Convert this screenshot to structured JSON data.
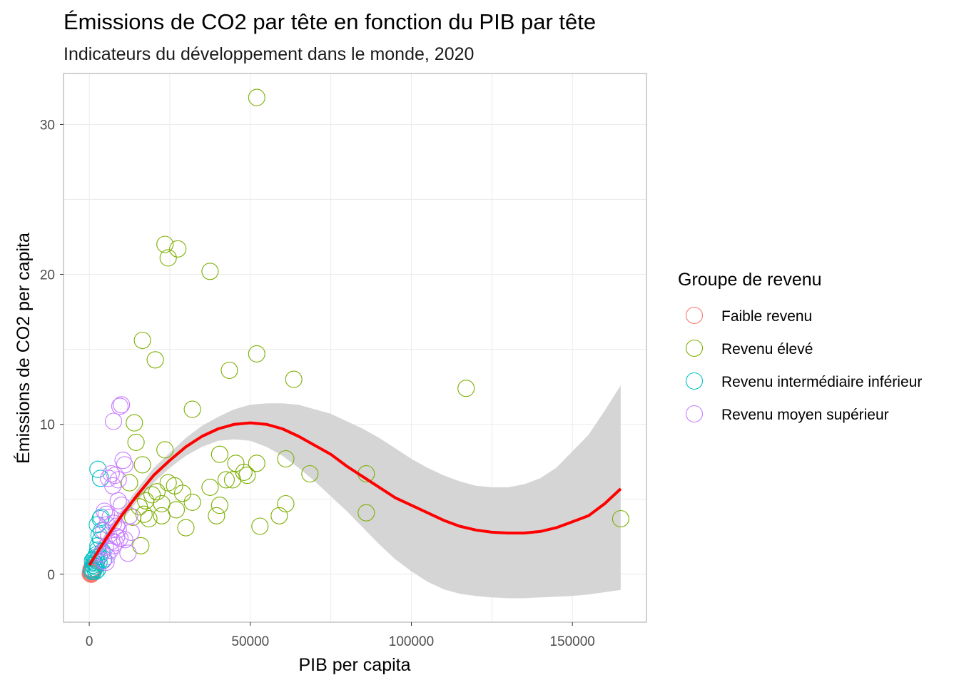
{
  "chart_data": {
    "type": "scatter",
    "title": "Émissions de CO2 par tête en fonction du PIB par tête",
    "subtitle": "Indicateurs du développement dans le monde, 2020",
    "xlabel": "PIB per capita",
    "ylabel": "Émissions de CO2 per capita",
    "xlim": [
      -8000,
      173000
    ],
    "ylim": [
      -3.2,
      33.4
    ],
    "x_ticks": [
      0,
      50000,
      100000,
      150000
    ],
    "x_tick_labels": [
      "0",
      "50000",
      "100000",
      "150000"
    ],
    "y_ticks": [
      0,
      10,
      20,
      30
    ],
    "y_tick_labels": [
      "0",
      "10",
      "20",
      "30"
    ],
    "grid": true,
    "legend": {
      "title": "Groupe de revenu",
      "position": "right",
      "entries": [
        "Faible revenu",
        "Revenu élevé",
        "Revenu intermédiaire inférieur",
        "Revenu moyen supérieur"
      ]
    },
    "series": [
      {
        "name": "Faible revenu",
        "color": "#F8766D",
        "points": [
          [
            300,
            0.05
          ],
          [
            400,
            0.1
          ],
          [
            500,
            0.15
          ],
          [
            600,
            0.05
          ],
          [
            700,
            0.2
          ],
          [
            800,
            0.1
          ],
          [
            500,
            0.3
          ],
          [
            900,
            0.25
          ],
          [
            1000,
            0.15
          ],
          [
            600,
            0.0
          ],
          [
            1100,
            0.2
          ],
          [
            700,
            0.4
          ],
          [
            400,
            0.05
          ],
          [
            850,
            0.35
          ]
        ]
      },
      {
        "name": "Revenu élevé",
        "color": "#7CAE00",
        "points": [
          [
            52000,
            31.8
          ],
          [
            23500,
            22.0
          ],
          [
            27500,
            21.7
          ],
          [
            24500,
            21.1
          ],
          [
            37500,
            20.2
          ],
          [
            16500,
            15.6
          ],
          [
            20500,
            14.3
          ],
          [
            52000,
            14.7
          ],
          [
            43500,
            13.6
          ],
          [
            63500,
            13.0
          ],
          [
            117000,
            12.4
          ],
          [
            32000,
            11.0
          ],
          [
            14000,
            10.1
          ],
          [
            14500,
            8.8
          ],
          [
            23500,
            8.3
          ],
          [
            40500,
            8.0
          ],
          [
            61000,
            7.7
          ],
          [
            45500,
            7.4
          ],
          [
            52000,
            7.4
          ],
          [
            48000,
            6.8
          ],
          [
            49000,
            6.6
          ],
          [
            68500,
            6.7
          ],
          [
            86000,
            6.7
          ],
          [
            16500,
            7.3
          ],
          [
            12500,
            6.1
          ],
          [
            26500,
            5.9
          ],
          [
            24500,
            6.1
          ],
          [
            37500,
            5.8
          ],
          [
            42500,
            6.3
          ],
          [
            44500,
            6.3
          ],
          [
            29000,
            5.4
          ],
          [
            19500,
            5.3
          ],
          [
            17500,
            4.9
          ],
          [
            22500,
            4.7
          ],
          [
            15500,
            4.5
          ],
          [
            32000,
            4.8
          ],
          [
            17000,
            4.0
          ],
          [
            22500,
            3.9
          ],
          [
            13500,
            3.8
          ],
          [
            27000,
            4.3
          ],
          [
            40500,
            4.6
          ],
          [
            39500,
            3.9
          ],
          [
            61000,
            4.7
          ],
          [
            59000,
            3.9
          ],
          [
            86000,
            4.1
          ],
          [
            53000,
            3.2
          ],
          [
            30000,
            3.1
          ],
          [
            165000,
            3.7
          ],
          [
            16000,
            1.9
          ],
          [
            21000,
            5.5
          ],
          [
            18500,
            3.7
          ]
        ]
      },
      {
        "name": "Revenu intermédiaire inférieur",
        "color": "#00BFC4",
        "points": [
          [
            2700,
            7.0
          ],
          [
            3500,
            6.4
          ],
          [
            3700,
            3.8
          ],
          [
            2500,
            3.3
          ],
          [
            3400,
            3.7
          ],
          [
            3800,
            2.9
          ],
          [
            3500,
            2.3
          ],
          [
            3000,
            2.6
          ],
          [
            2700,
            1.9
          ],
          [
            2200,
            1.3
          ],
          [
            1800,
            1.1
          ],
          [
            1500,
            0.8
          ],
          [
            1200,
            0.6
          ],
          [
            2000,
            0.5
          ],
          [
            1000,
            0.9
          ],
          [
            1600,
            0.4
          ],
          [
            2500,
            0.3
          ],
          [
            1300,
            0.2
          ],
          [
            900,
            0.3
          ],
          [
            3000,
            0.8
          ],
          [
            4500,
            1.0
          ],
          [
            2000,
            0.2
          ],
          [
            1800,
            0.7
          ],
          [
            2300,
            0.9
          ],
          [
            3100,
            1.2
          ],
          [
            4100,
            1.5
          ],
          [
            700,
            0.2
          ],
          [
            1400,
            1.0
          ],
          [
            2600,
            1.6
          ]
        ]
      },
      {
        "name": "Revenu moyen supérieur",
        "color": "#C77CFF",
        "points": [
          [
            10000,
            11.3
          ],
          [
            9500,
            11.2
          ],
          [
            7500,
            10.2
          ],
          [
            10500,
            7.6
          ],
          [
            11000,
            7.3
          ],
          [
            8000,
            6.6
          ],
          [
            9000,
            6.3
          ],
          [
            6000,
            6.4
          ],
          [
            6800,
            6.7
          ],
          [
            7300,
            5.9
          ],
          [
            9000,
            4.9
          ],
          [
            10000,
            4.6
          ],
          [
            4700,
            4.2
          ],
          [
            5300,
            4.0
          ],
          [
            6500,
            3.8
          ],
          [
            7500,
            3.4
          ],
          [
            8500,
            3.2
          ],
          [
            5500,
            3.3
          ],
          [
            4500,
            2.9
          ],
          [
            6000,
            2.6
          ],
          [
            7000,
            2.2
          ],
          [
            8000,
            2.1
          ],
          [
            9500,
            2.4
          ],
          [
            11000,
            2.3
          ],
          [
            12000,
            1.4
          ],
          [
            13000,
            2.8
          ],
          [
            12500,
            3.9
          ],
          [
            5500,
            1.2
          ],
          [
            6500,
            1.6
          ],
          [
            5000,
            1.8
          ],
          [
            7500,
            1.9
          ],
          [
            4300,
            0.9
          ],
          [
            5200,
            0.8
          ],
          [
            3800,
            1.4
          ],
          [
            8500,
            2.5
          ],
          [
            9000,
            3.0
          ]
        ]
      }
    ],
    "smooth": {
      "method": "loess",
      "color": "#FF0000",
      "ribbon_color": "#D3D3D3",
      "x": [
        0,
        5000,
        10000,
        15000,
        20000,
        25000,
        30000,
        35000,
        40000,
        45000,
        50000,
        55000,
        60000,
        65000,
        70000,
        75000,
        80000,
        85000,
        90000,
        95000,
        100000,
        105000,
        110000,
        115000,
        120000,
        125000,
        130000,
        135000,
        140000,
        145000,
        150000,
        155000,
        160000,
        165000
      ],
      "y": [
        0.6,
        2.3,
        3.9,
        5.3,
        6.6,
        7.6,
        8.5,
        9.2,
        9.7,
        10.0,
        10.1,
        10.0,
        9.7,
        9.2,
        8.6,
        8.0,
        7.2,
        6.5,
        5.8,
        5.1,
        4.6,
        4.1,
        3.6,
        3.2,
        2.95,
        2.8,
        2.75,
        2.75,
        2.85,
        3.1,
        3.5,
        3.9,
        4.7,
        5.7
      ],
      "ymin": [
        0.1,
        1.9,
        3.5,
        4.9,
        6.1,
        7.1,
        7.9,
        8.5,
        8.9,
        9.0,
        8.9,
        8.5,
        7.9,
        7.1,
        6.2,
        5.2,
        4.2,
        3.1,
        2.0,
        1.0,
        0.2,
        -0.5,
        -1.0,
        -1.3,
        -1.45,
        -1.55,
        -1.6,
        -1.6,
        -1.55,
        -1.5,
        -1.45,
        -1.35,
        -1.2,
        -1.05
      ],
      "ymax": [
        1.1,
        2.7,
        4.3,
        5.7,
        7.1,
        8.1,
        9.1,
        9.9,
        10.5,
        11.0,
        11.3,
        11.4,
        11.4,
        11.3,
        11.0,
        10.7,
        10.2,
        9.7,
        9.1,
        8.4,
        7.7,
        7.1,
        6.6,
        6.2,
        5.9,
        5.8,
        5.8,
        6.0,
        6.4,
        7.1,
        8.2,
        9.3,
        10.9,
        12.6
      ]
    }
  }
}
